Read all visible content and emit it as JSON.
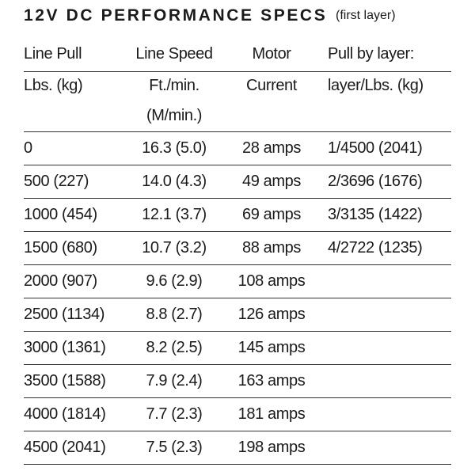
{
  "title": "12V DC PERFORMANCE SPECS",
  "subtitle": "(first layer)",
  "header": [
    [
      "Line Pull",
      "Line Speed",
      "Motor",
      "Pull by layer:"
    ],
    [
      "Lbs. (kg)",
      "Ft./min. (M/min.)",
      "Current",
      "layer/Lbs. (kg)"
    ]
  ],
  "rows": [
    [
      "0",
      "16.3 (5.0)",
      "28 amps",
      "1/4500 (2041)"
    ],
    [
      "500 (227)",
      "14.0 (4.3)",
      "49 amps",
      "2/3696 (1676)"
    ],
    [
      "1000 (454)",
      "12.1 (3.7)",
      "69 amps",
      "3/3135 (1422)"
    ],
    [
      "1500 (680)",
      "10.7 (3.2)",
      "88 amps",
      "4/2722 (1235)"
    ],
    [
      "2000 (907)",
      "9.6 (2.9)",
      "108 amps"
    ],
    [
      "2500 (1134)",
      "8.8 (2.7)",
      "126 amps"
    ],
    [
      "3000 (1361)",
      "8.2 (2.5)",
      "145 amps"
    ],
    [
      "3500 (1588)",
      "7.9 (2.4)",
      "163 amps"
    ],
    [
      "4000 (1814)",
      "7.7 (2.3)",
      "181 amps"
    ],
    [
      "4500 (2041)",
      "7.5 (2.3)",
      "198 amps"
    ]
  ]
}
